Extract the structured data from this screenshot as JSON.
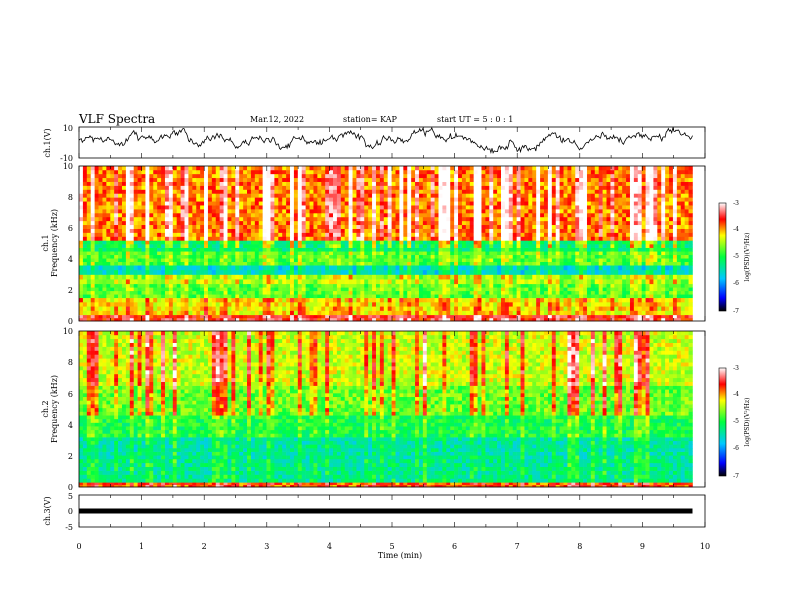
{
  "header": {
    "title": "VLF Spectra",
    "date": "Mar.12, 2022",
    "station": "station= KAP",
    "start": "start UT = 5 : 0 : 1"
  },
  "chart_data": [
    {
      "type": "line",
      "ylabel": "ch.1(V)",
      "ylim": [
        -10,
        10
      ],
      "yticks": [
        "10",
        "-10"
      ],
      "xlim": [
        0,
        10
      ],
      "trace": {
        "samples": 560,
        "mean": 2.0,
        "amplitude": 4.5,
        "x_end": 9.8,
        "color": "#000000"
      }
    },
    {
      "type": "heatmap",
      "name": "ch1-spectrogram",
      "ylabel_top": "ch.1",
      "ylabel": "Frequency (kHz)",
      "ylim": [
        0,
        10
      ],
      "yticks": [
        "0",
        "2",
        "4",
        "6",
        "8",
        "10"
      ],
      "xlim": [
        0,
        10
      ],
      "x_end": 9.8,
      "colorbar": {
        "label": "log(PSD)(V²/Hz)",
        "range": [
          -7,
          -3
        ],
        "ticks": [
          "-3",
          "-4",
          "-5",
          "-6",
          "-7"
        ]
      },
      "bands": [
        {
          "from": 0.0,
          "to": 0.4,
          "level": 0.85
        },
        {
          "from": 0.4,
          "to": 1.5,
          "level": 0.7
        },
        {
          "from": 1.5,
          "to": 2.4,
          "level": 0.55
        },
        {
          "from": 2.4,
          "to": 3.0,
          "level": 0.62
        },
        {
          "from": 3.0,
          "to": 3.6,
          "level": 0.35
        },
        {
          "from": 3.6,
          "to": 4.5,
          "level": 0.55
        },
        {
          "from": 4.5,
          "to": 5.2,
          "level": 0.45
        },
        {
          "from": 5.2,
          "to": 10.0,
          "level": 0.78
        }
      ]
    },
    {
      "type": "heatmap",
      "name": "ch2-spectrogram",
      "ylabel_top": "ch.2",
      "ylabel": "Frequency (kHz)",
      "ylim": [
        0,
        10
      ],
      "yticks": [
        "0",
        "2",
        "4",
        "6",
        "8",
        "10"
      ],
      "xlim": [
        0,
        10
      ],
      "x_end": 9.8,
      "colorbar": {
        "label": "log(PSD)(V²/Hz)",
        "range": [
          -7,
          -3
        ],
        "ticks": [
          "-3",
          "-4",
          "-5",
          "-6",
          "-7"
        ]
      },
      "bands": [
        {
          "from": 0.0,
          "to": 0.3,
          "level": 0.8
        },
        {
          "from": 0.3,
          "to": 1.8,
          "level": 0.42
        },
        {
          "from": 1.8,
          "to": 3.2,
          "level": 0.4
        },
        {
          "from": 3.2,
          "to": 4.6,
          "level": 0.5
        },
        {
          "from": 4.6,
          "to": 6.5,
          "level": 0.58
        },
        {
          "from": 6.5,
          "to": 10.0,
          "level": 0.66
        }
      ]
    },
    {
      "type": "line",
      "ylabel": "ch.3(V)",
      "ylim": [
        -5,
        5
      ],
      "yticks": [
        "5",
        "0",
        "-5"
      ],
      "xlim": [
        0,
        10
      ],
      "xlabel": "Time (min)",
      "xticks": [
        "0",
        "1",
        "2",
        "3",
        "4",
        "5",
        "6",
        "7",
        "8",
        "9",
        "10"
      ],
      "trace": {
        "value": 0,
        "x_end": 9.8,
        "color": "#000000"
      }
    }
  ]
}
